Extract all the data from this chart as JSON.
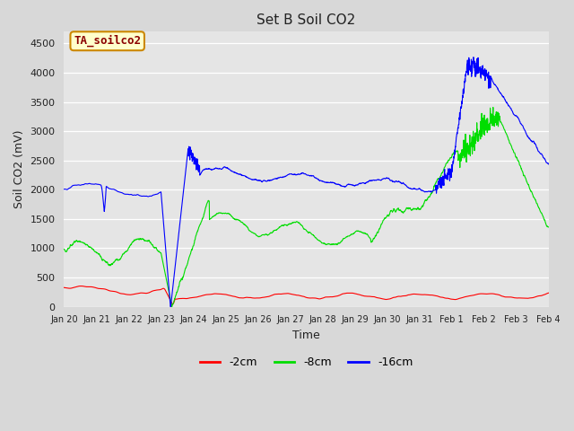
{
  "title": "Set B Soil CO2",
  "xlabel": "Time",
  "ylabel": "Soil CO2 (mV)",
  "ylim": [
    0,
    4700
  ],
  "yticks": [
    0,
    500,
    1000,
    1500,
    2000,
    2500,
    3000,
    3500,
    4000,
    4500
  ],
  "bg_color": "#e8e8e8",
  "plot_bg_color": "#e5e5e5",
  "line_colors": {
    "2cm": "#ff0000",
    "8cm": "#00dd00",
    "16cm": "#0000ff"
  },
  "legend_labels": [
    "-2cm",
    "-8cm",
    "-16cm"
  ],
  "annotation_box": "TA_soilco2",
  "annotation_color": "#8b0000",
  "annotation_bg": "#ffffcc",
  "annotation_border": "#cc8800",
  "xtick_labels": [
    "Jan 20",
    "Jan 21",
    "Jan 22",
    "Jan 23",
    "Jan 24",
    "Jan 25",
    "Jan 26",
    "Jan 27",
    "Jan 28",
    "Jan 29",
    "Jan 30",
    "Jan 31",
    "Feb 1",
    "Feb 2",
    "Feb 3",
    "Feb 4"
  ],
  "xtick_positions": [
    0,
    1,
    2,
    3,
    4,
    5,
    6,
    7,
    8,
    9,
    10,
    11,
    12,
    13,
    14,
    15
  ]
}
